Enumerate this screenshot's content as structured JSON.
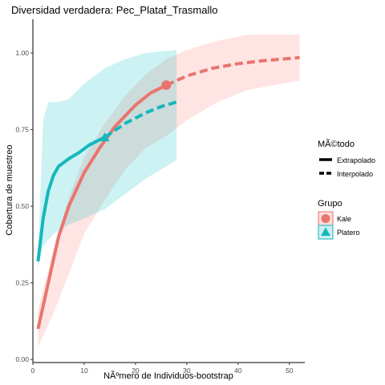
{
  "chart_data": {
    "type": "line",
    "title": "Diversidad verdadera: Pec_Plataf_Trasmallo",
    "xlabel": "NÃºmero de Individuos-bootstrap",
    "ylabel": "Cobertura de muestreo",
    "xlim": [
      0,
      53
    ],
    "ylim": [
      -0.01,
      1.11
    ],
    "x_ticks": [
      0,
      10,
      20,
      30,
      40,
      50
    ],
    "y_ticks": [
      0.0,
      0.25,
      0.5,
      0.75,
      1.0
    ],
    "x_tick_labels": [
      "0",
      "10",
      "20",
      "30",
      "40",
      "50"
    ],
    "y_tick_labels": [
      "0.00",
      "0.25",
      "0.50",
      "0.75",
      "1.00"
    ],
    "grid": false,
    "legend_position": "right",
    "legend": {
      "method_title": "MÃ©todo",
      "method_items": [
        {
          "label": "Extrapolado",
          "linetype": "solid"
        },
        {
          "label": "Interpolado",
          "linetype": "dashed"
        }
      ],
      "group_title": "Grupo",
      "group_items": [
        {
          "label": "Kale",
          "shape": "circle",
          "color": "#E8756E"
        },
        {
          "label": "Platero",
          "shape": "triangle",
          "color": "#15B7BC"
        }
      ]
    },
    "series": [
      {
        "name": "Kale",
        "color": "#E8756E",
        "ribbon_color": "#F8766D",
        "observed": {
          "x": 26,
          "y": 0.895
        },
        "solid": [
          {
            "x": 1,
            "y": 0.1
          },
          {
            "x": 3,
            "y": 0.25
          },
          {
            "x": 5,
            "y": 0.4
          },
          {
            "x": 7,
            "y": 0.5
          },
          {
            "x": 10,
            "y": 0.61
          },
          {
            "x": 13,
            "y": 0.69
          },
          {
            "x": 16,
            "y": 0.76
          },
          {
            "x": 20,
            "y": 0.83
          },
          {
            "x": 23,
            "y": 0.87
          },
          {
            "x": 26,
            "y": 0.895
          }
        ],
        "dashed": [
          {
            "x": 26,
            "y": 0.895
          },
          {
            "x": 30,
            "y": 0.925
          },
          {
            "x": 35,
            "y": 0.95
          },
          {
            "x": 40,
            "y": 0.965
          },
          {
            "x": 45,
            "y": 0.975
          },
          {
            "x": 52,
            "y": 0.985
          }
        ],
        "ribbon_lower": [
          {
            "x": 1,
            "y": 0.04
          },
          {
            "x": 4,
            "y": 0.15
          },
          {
            "x": 7,
            "y": 0.28
          },
          {
            "x": 10,
            "y": 0.41
          },
          {
            "x": 14,
            "y": 0.52
          },
          {
            "x": 18,
            "y": 0.62
          },
          {
            "x": 22,
            "y": 0.69
          },
          {
            "x": 26,
            "y": 0.73
          },
          {
            "x": 30,
            "y": 0.78
          },
          {
            "x": 36,
            "y": 0.84
          },
          {
            "x": 42,
            "y": 0.88
          },
          {
            "x": 52,
            "y": 0.91
          }
        ],
        "ribbon_upper": [
          {
            "x": 1,
            "y": 0.16
          },
          {
            "x": 4,
            "y": 0.36
          },
          {
            "x": 7,
            "y": 0.53
          },
          {
            "x": 10,
            "y": 0.66
          },
          {
            "x": 14,
            "y": 0.77
          },
          {
            "x": 18,
            "y": 0.86
          },
          {
            "x": 22,
            "y": 0.93
          },
          {
            "x": 26,
            "y": 0.98
          },
          {
            "x": 30,
            "y": 1.01
          },
          {
            "x": 36,
            "y": 1.04
          },
          {
            "x": 42,
            "y": 1.06
          },
          {
            "x": 52,
            "y": 1.06
          }
        ]
      },
      {
        "name": "Platero",
        "color": "#15B7BC",
        "ribbon_color": "#00BFC4",
        "observed": {
          "x": 14,
          "y": 0.725
        },
        "solid": [
          {
            "x": 1,
            "y": 0.32
          },
          {
            "x": 2,
            "y": 0.46
          },
          {
            "x": 3,
            "y": 0.55
          },
          {
            "x": 4,
            "y": 0.6
          },
          {
            "x": 5,
            "y": 0.63
          },
          {
            "x": 7,
            "y": 0.655
          },
          {
            "x": 9,
            "y": 0.675
          },
          {
            "x": 11,
            "y": 0.7
          },
          {
            "x": 14,
            "y": 0.725
          }
        ],
        "dashed": [
          {
            "x": 14,
            "y": 0.725
          },
          {
            "x": 18,
            "y": 0.77
          },
          {
            "x": 22,
            "y": 0.805
          },
          {
            "x": 25,
            "y": 0.825
          },
          {
            "x": 28,
            "y": 0.84
          }
        ],
        "ribbon_lower": [
          {
            "x": 1,
            "y": 0.3
          },
          {
            "x": 2,
            "y": 0.37
          },
          {
            "x": 4,
            "y": 0.41
          },
          {
            "x": 7,
            "y": 0.44
          },
          {
            "x": 10,
            "y": 0.46
          },
          {
            "x": 14,
            "y": 0.49
          },
          {
            "x": 18,
            "y": 0.54
          },
          {
            "x": 22,
            "y": 0.59
          },
          {
            "x": 28,
            "y": 0.65
          }
        ],
        "ribbon_upper": [
          {
            "x": 1,
            "y": 0.34
          },
          {
            "x": 2,
            "y": 0.78
          },
          {
            "x": 3,
            "y": 0.84
          },
          {
            "x": 5,
            "y": 0.84
          },
          {
            "x": 7,
            "y": 0.85
          },
          {
            "x": 10,
            "y": 0.9
          },
          {
            "x": 14,
            "y": 0.95
          },
          {
            "x": 18,
            "y": 0.98
          },
          {
            "x": 22,
            "y": 1.0
          },
          {
            "x": 28,
            "y": 1.01
          }
        ]
      }
    ]
  }
}
